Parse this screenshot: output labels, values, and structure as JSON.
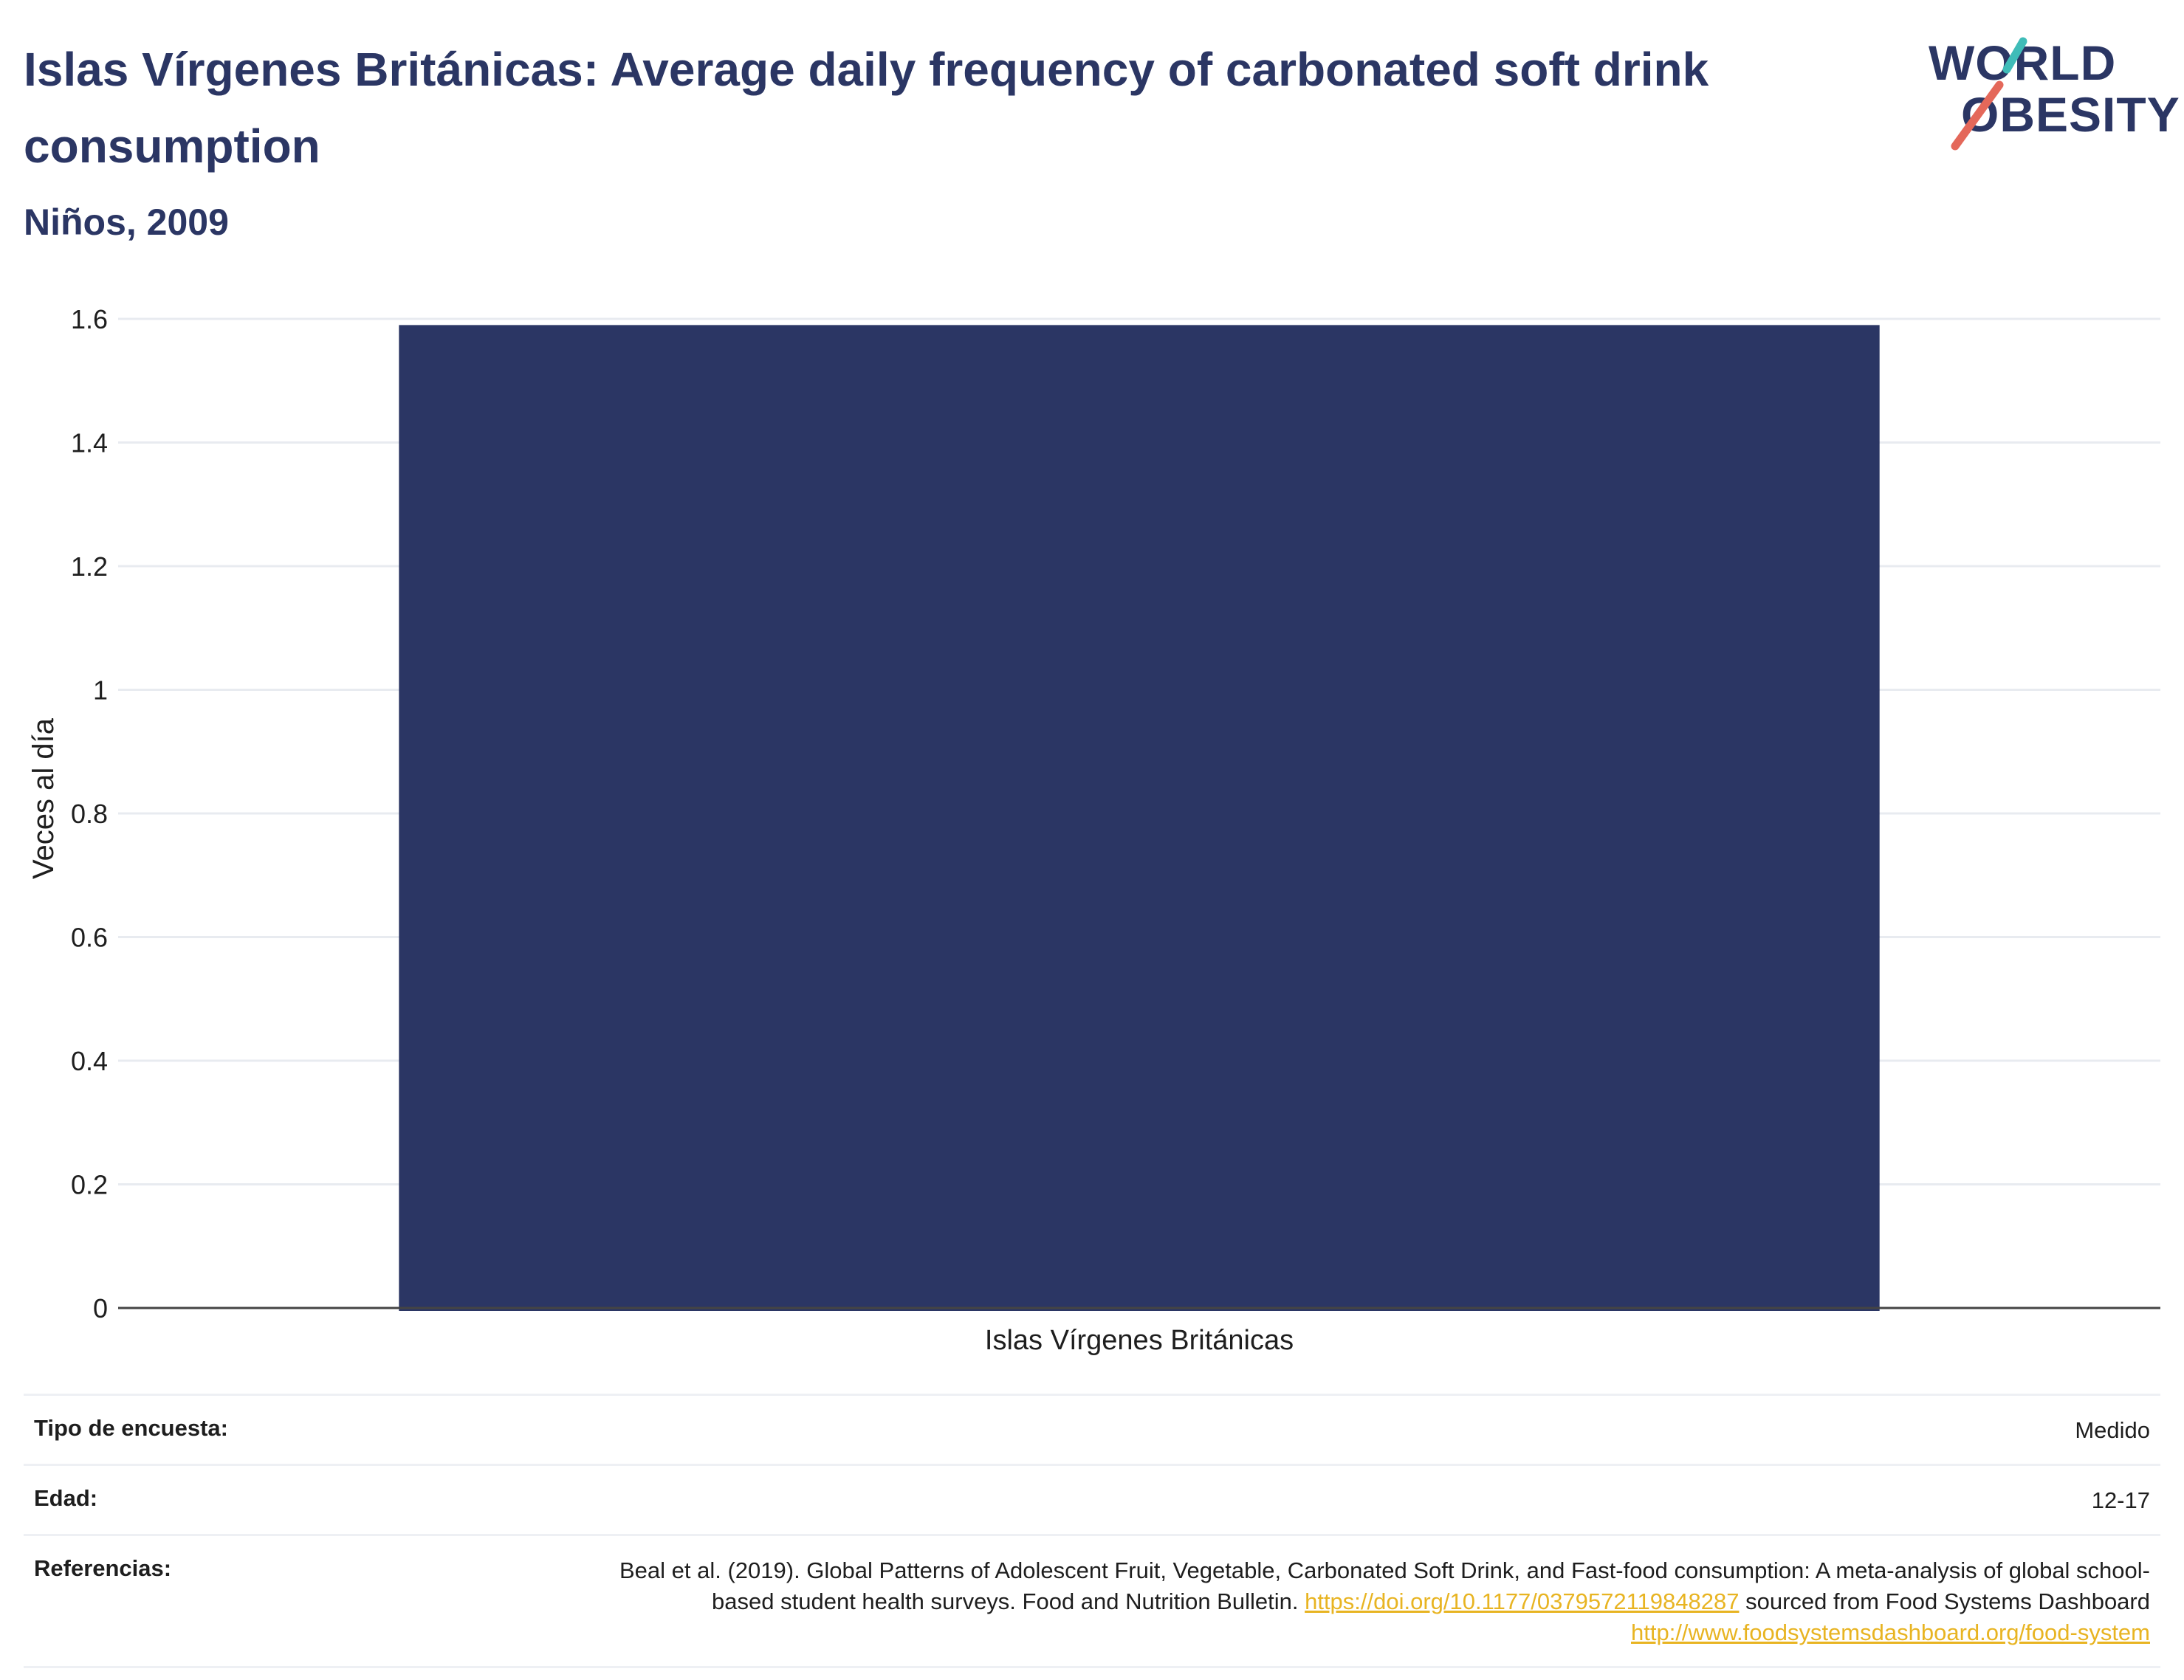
{
  "header": {
    "title": "Islas Vírgenes Británicas: Average daily frequency of carbonated soft drink consumption",
    "subtitle": "Niños, 2009"
  },
  "logo": {
    "line1": "WORLD",
    "line2": "OBESITY",
    "accent_colors": [
      "#3fbcb8",
      "#e4685a"
    ]
  },
  "chart_data": {
    "type": "bar",
    "categories": [
      "Islas Vírgenes Británicas"
    ],
    "values": [
      1.59
    ],
    "xlabel": "",
    "ylabel": "Veces al día",
    "ylim": [
      0,
      1.6
    ],
    "yticks": [
      0,
      0.2,
      0.4,
      0.6,
      0.8,
      1,
      1.2,
      1.4,
      1.6
    ],
    "ytick_labels": [
      "0",
      "0.2",
      "0.4",
      "0.6",
      "0.8",
      "1",
      "1.2",
      "1.4",
      "1.6"
    ],
    "grid": true,
    "bar_color": "#2b3664"
  },
  "meta": {
    "survey_type_label": "Tipo de encuesta:",
    "survey_type_value": "Medido",
    "age_label": "Edad:",
    "age_value": "12-17",
    "references_label": "Referencias:",
    "reference_text_1": "Beal et al. (2019). Global Patterns of Adolescent Fruit, Vegetable, Carbonated Soft Drink, and Fast-food consumption: A meta-analysis of global school-based student health surveys. Food and Nutrition Bulletin. ",
    "reference_link_1": "https://doi.org/10.1177/0379572119848287",
    "reference_text_2": " sourced from Food Systems Dashboard ",
    "reference_link_2": "http://www.foodsystemsdashboard.org/food-system"
  }
}
